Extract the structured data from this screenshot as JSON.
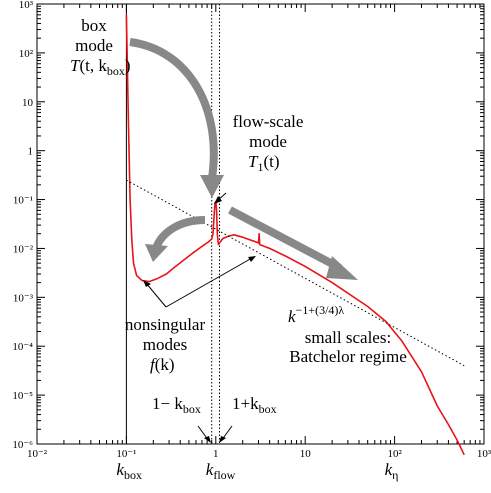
{
  "chart_data": {
    "type": "line",
    "xscale": "log",
    "yscale": "log",
    "xlim": [
      0.01,
      1000
    ],
    "ylim": [
      1e-06,
      1000
    ],
    "x_tick_labels": [
      "10⁻²",
      "10⁻¹",
      "1",
      "10",
      "10²",
      "10³"
    ],
    "x_ticks": [
      0.01,
      0.1,
      1,
      10,
      100,
      1000
    ],
    "y_tick_labels": [
      "10⁻⁶",
      "10⁻⁵",
      "10⁻⁴",
      "10⁻³",
      "10⁻²",
      "10⁻¹",
      "1",
      "10",
      "10²",
      "10³"
    ],
    "y_ticks": [
      1e-06,
      1e-05,
      0.0001,
      0.001,
      0.01,
      0.1,
      1,
      10,
      100,
      1000
    ],
    "x_marker_labels": [
      {
        "text": "k",
        "sub": "box",
        "x": 0.1
      },
      {
        "text": "k",
        "sub": "flow",
        "x": 1.0
      },
      {
        "text": "k",
        "sub": "η",
        "x": 100
      }
    ],
    "vertical_lines": [
      {
        "x": 0.1,
        "style": "solid"
      },
      {
        "x": 0.9,
        "style": "dotted"
      },
      {
        "x": 1.1,
        "style": "dotted"
      }
    ],
    "series": [
      {
        "color": "#e8141a",
        "x": [
          0.1,
          0.102,
          0.105,
          0.11,
          0.115,
          0.12,
          0.13,
          0.15,
          0.18,
          0.22,
          0.28,
          0.35,
          0.45,
          0.55,
          0.7,
          0.82,
          0.9,
          0.93,
          0.96,
          0.98,
          1.0,
          1.02,
          1.04,
          1.07,
          1.1,
          1.2,
          1.4,
          1.6,
          2.0,
          3.0,
          3.05,
          3.1,
          4,
          6,
          10,
          20,
          50,
          80,
          120,
          200,
          300,
          400,
          500,
          600
        ],
        "y": [
          600,
          80,
          5,
          0.1,
          0.015,
          0.005,
          0.0028,
          0.0022,
          0.0021,
          0.0024,
          0.003,
          0.0042,
          0.006,
          0.008,
          0.011,
          0.0135,
          0.0155,
          0.02,
          0.05,
          0.085,
          0.09,
          0.06,
          0.02,
          0.012,
          0.013,
          0.016,
          0.018,
          0.019,
          0.017,
          0.013,
          0.02,
          0.012,
          0.01,
          0.007,
          0.0043,
          0.002,
          0.00065,
          0.00032,
          0.00013,
          3e-05,
          6e-06,
          2.5e-06,
          1.2e-06,
          6e-07
        ]
      },
      {
        "style": "dotted",
        "x": [
          0.1,
          600
        ],
        "y": [
          0.25,
          4e-05
        ]
      }
    ]
  },
  "annotations": {
    "box_mode": {
      "line1": "box",
      "line2": "mode",
      "func": "T",
      "args_pre": "(t, k",
      "args_sub": "box",
      "args_post": ")"
    },
    "flow_mode": {
      "line1": "flow-scale",
      "line2": "mode",
      "func": "T",
      "func_sub": "1",
      "args": "(t)"
    },
    "nonsingular": {
      "line1": "nonsingular",
      "line2": "modes",
      "func": "f",
      "args": "(k)"
    },
    "power_law": {
      "base": "k",
      "exponent": "−1+(3/4)λ"
    },
    "small_scales": {
      "line1": "small scales:",
      "line2": "Batchelor regime"
    },
    "minus_box": {
      "pre": "1− k",
      "sub": "box"
    },
    "plus_box": {
      "pre": "1+k",
      "sub": "box"
    }
  },
  "colors": {
    "data_line": "#e8141a",
    "arrow_gray": "#888888",
    "axes": "#000000"
  }
}
